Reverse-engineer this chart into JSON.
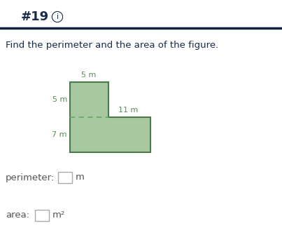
{
  "title": "#19",
  "title_info": "i",
  "question_text": "Find the perimeter and the area of the figure.",
  "shape_color_fill": "#a8c8a0",
  "shape_color_edge": "#4a7a4a",
  "shape_color_dashed": "#6aaa6a",
  "label_color": "#5a8a5a",
  "header_color": "#1a2a4a",
  "bg_color": "#ffffff",
  "header_line_color": "#0d2240",
  "box_color": "#aaaaaa",
  "label_5m_top": "5 m",
  "label_5m_left": "5 m",
  "label_11m": "11 m",
  "label_7m": "7 m",
  "perimeter_text": "perimeter:",
  "perimeter_unit": "m",
  "area_text": "area:",
  "area_unit": "m²"
}
